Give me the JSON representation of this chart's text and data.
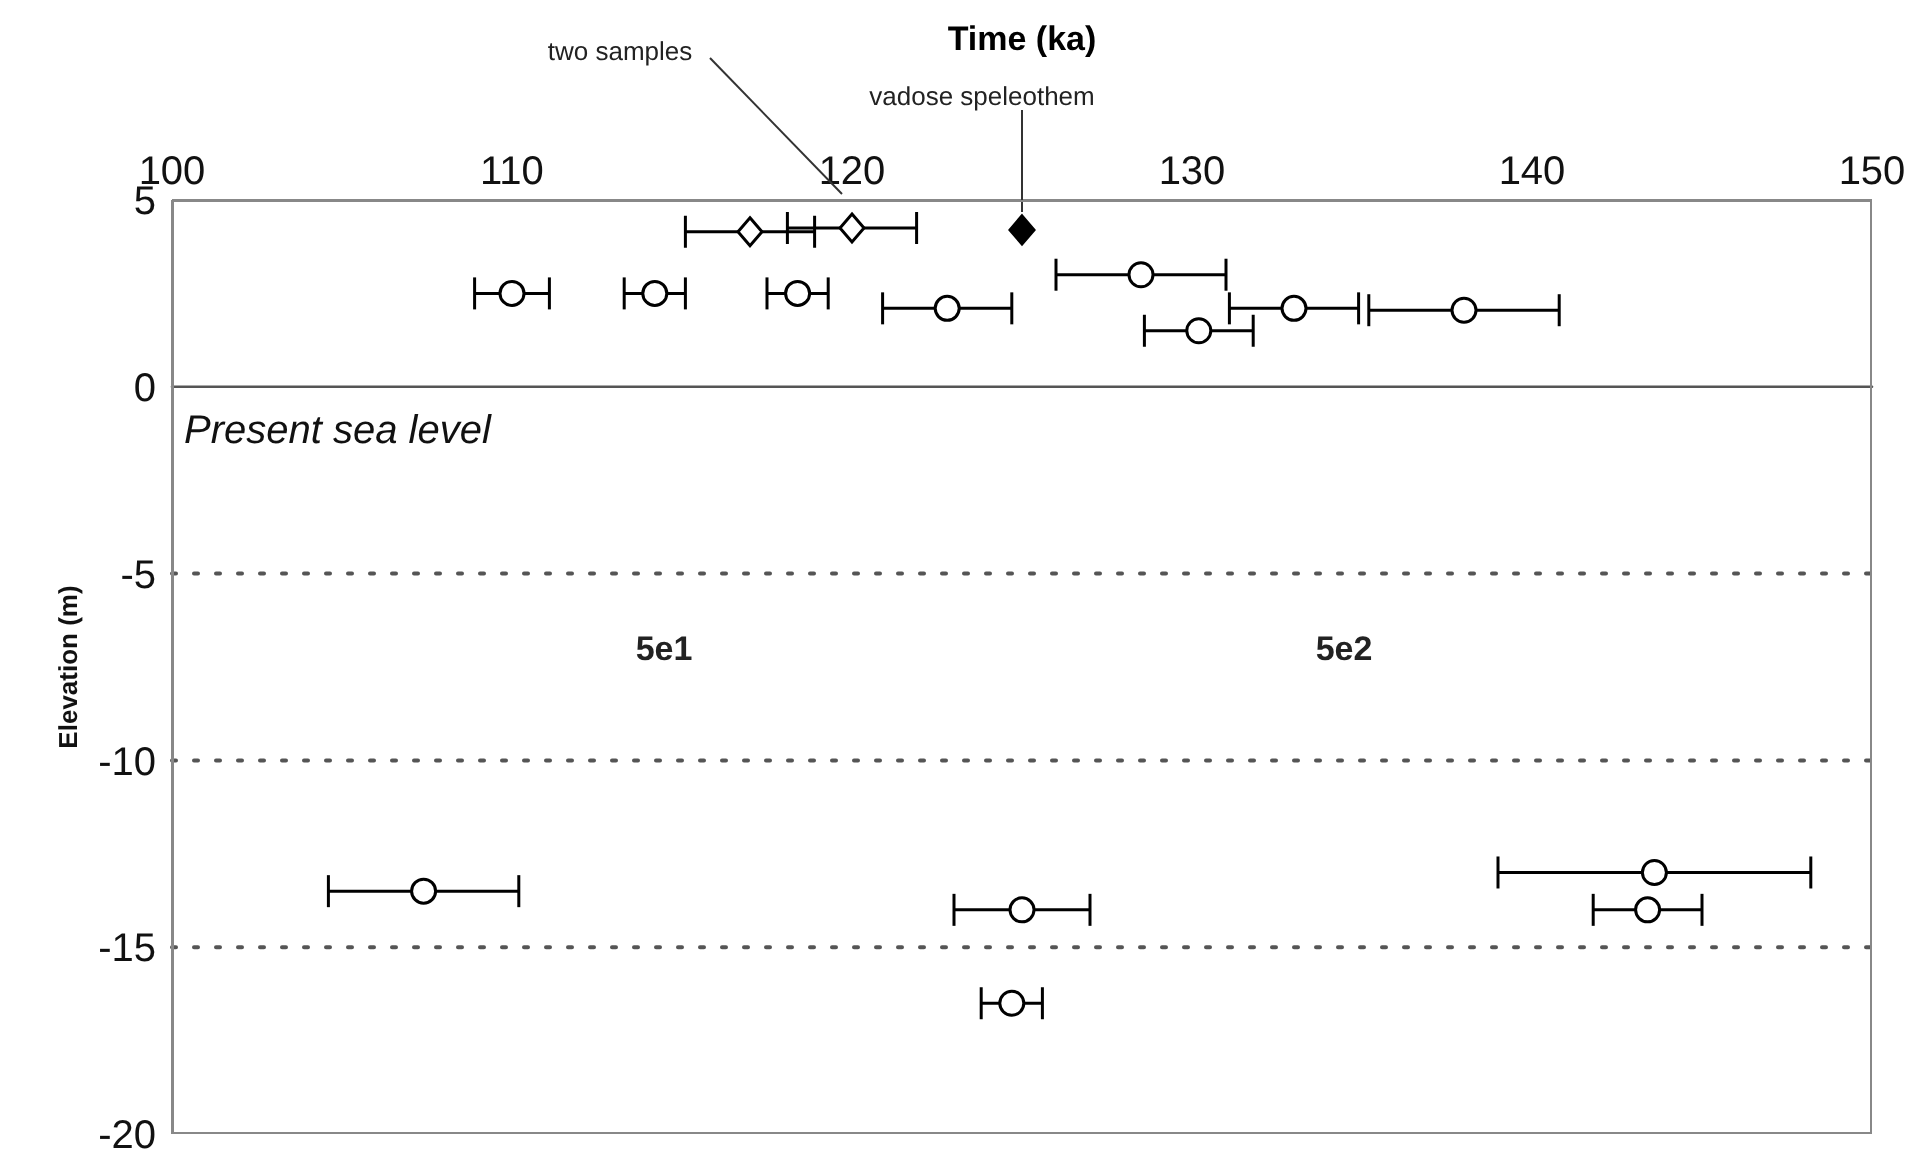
{
  "chart_data": {
    "type": "scatter",
    "xlabel": "Time (ka)",
    "ylabel": "Elevation (m)",
    "xlim": [
      100,
      150
    ],
    "xticks": [
      100,
      110,
      120,
      130,
      140,
      150
    ],
    "ylim": [
      -20,
      5
    ],
    "yticks": [
      5,
      0,
      -5,
      -10,
      -15,
      -20
    ],
    "series": [
      {
        "color": "#000000",
        "marker": "circle",
        "x": [
          110,
          114.2,
          118.4,
          122.8,
          128.5,
          133.0,
          138.0,
          130.2,
          107.4,
          125.0,
          124.7,
          143.6,
          143.4
        ],
        "values": [
          2.5,
          2.5,
          2.5,
          2.1,
          3.0,
          2.1,
          2.05,
          1.5,
          -13.5,
          -14.0,
          -16.5,
          -13.0,
          -14.0
        ],
        "xerrors": [
          1.1,
          0.9,
          0.9,
          1.9,
          2.5,
          1.9,
          2.8,
          1.6,
          2.8,
          2.0,
          0.9,
          4.6,
          1.6
        ]
      },
      {
        "color": "#000000",
        "marker": "diamond",
        "x": [
          117.0,
          120.0
        ],
        "values": [
          4.15,
          4.25
        ],
        "xerrors": [
          1.9,
          1.9
        ]
      },
      {
        "color": "#000000",
        "marker": "diamond",
        "x": [
          125.0
        ],
        "values": [
          4.2
        ]
      }
    ],
    "ref_lines": [
      {
        "axis": "y",
        "value": 0,
        "label": "Present sea level",
        "color": "#555555",
        "line_style": "solid"
      },
      {
        "axis": "y",
        "value": -5,
        "color": "#555555",
        "line_style": "dotted"
      },
      {
        "axis": "y",
        "value": -10,
        "color": "#555555",
        "line_style": "dotted"
      },
      {
        "axis": "y",
        "value": -15,
        "color": "#555555",
        "line_style": "dotted"
      }
    ],
    "annotations": [
      "two samples",
      {
        "text": "vadose speleothem",
        "x": 125,
        "y": 4.2
      },
      "5e1",
      "5e2"
    ]
  }
}
